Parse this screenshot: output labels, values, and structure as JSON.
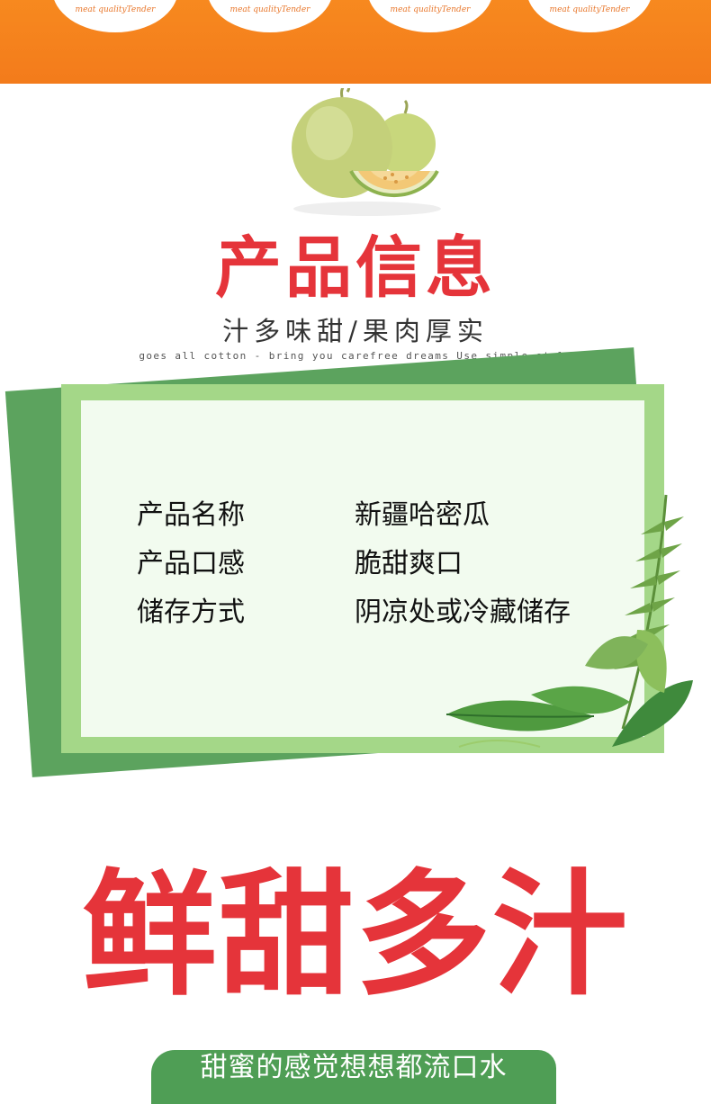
{
  "header": {
    "badges": [
      "meat qualityTender",
      "meat qualityTender",
      "meat qualityTender",
      "meat qualityTender"
    ]
  },
  "section": {
    "title": "产品信息",
    "subtitle": "汁多味甜/果肉厚实",
    "tagline": "goes all cotton - bring you carefree dreams Use simple style"
  },
  "info": [
    {
      "label": "产品名称",
      "value": "新疆哈密瓜"
    },
    {
      "label": "产品口感",
      "value": "脆甜爽口"
    },
    {
      "label": "储存方式",
      "value": "阴凉处或冷藏储存"
    }
  ],
  "promo": {
    "slogan": "鲜甜多汁",
    "banner": "甜蜜的感觉想想都流口水"
  },
  "colors": {
    "header_orange": "#f37b1b",
    "title_red": "#e5343a",
    "card_green": "#a4d788",
    "card_shadow_green": "#5ca35e",
    "banner_green": "#4f9e55"
  },
  "icons": [
    "melon-illustration",
    "leaves-decoration"
  ]
}
